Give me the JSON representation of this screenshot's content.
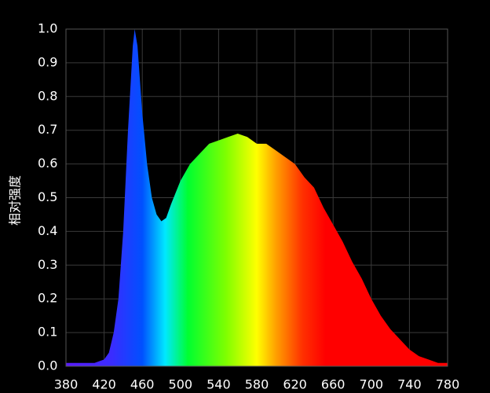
{
  "chart_data": {
    "type": "area",
    "y_label": "相对强度",
    "x": [
      380,
      390,
      400,
      410,
      420,
      425,
      430,
      435,
      440,
      445,
      450,
      452,
      455,
      460,
      465,
      470,
      475,
      480,
      485,
      490,
      500,
      510,
      520,
      530,
      540,
      550,
      560,
      570,
      580,
      590,
      600,
      610,
      620,
      630,
      640,
      650,
      660,
      670,
      680,
      690,
      700,
      710,
      720,
      730,
      740,
      750,
      760,
      770,
      780
    ],
    "values": [
      0.01,
      0.01,
      0.01,
      0.01,
      0.02,
      0.04,
      0.1,
      0.2,
      0.4,
      0.7,
      0.95,
      1.0,
      0.95,
      0.75,
      0.6,
      0.5,
      0.45,
      0.43,
      0.44,
      0.48,
      0.55,
      0.6,
      0.63,
      0.66,
      0.67,
      0.68,
      0.69,
      0.68,
      0.66,
      0.66,
      0.64,
      0.62,
      0.6,
      0.56,
      0.53,
      0.47,
      0.42,
      0.37,
      0.31,
      0.26,
      0.2,
      0.15,
      0.11,
      0.08,
      0.05,
      0.03,
      0.02,
      0.01,
      0.01
    ],
    "xlim": [
      380,
      780
    ],
    "xticks": [
      380,
      420,
      460,
      500,
      540,
      580,
      620,
      660,
      700,
      740,
      780
    ],
    "ylim": [
      0,
      1
    ],
    "yticks": [
      {
        "value": 0,
        "label": "0.0"
      },
      0.1,
      0.2,
      0.3,
      0.4,
      0.5,
      0.6,
      0.7,
      0.8,
      0.9,
      {
        "value": 1,
        "label": "1.0"
      }
    ],
    "grid": true
  }
}
